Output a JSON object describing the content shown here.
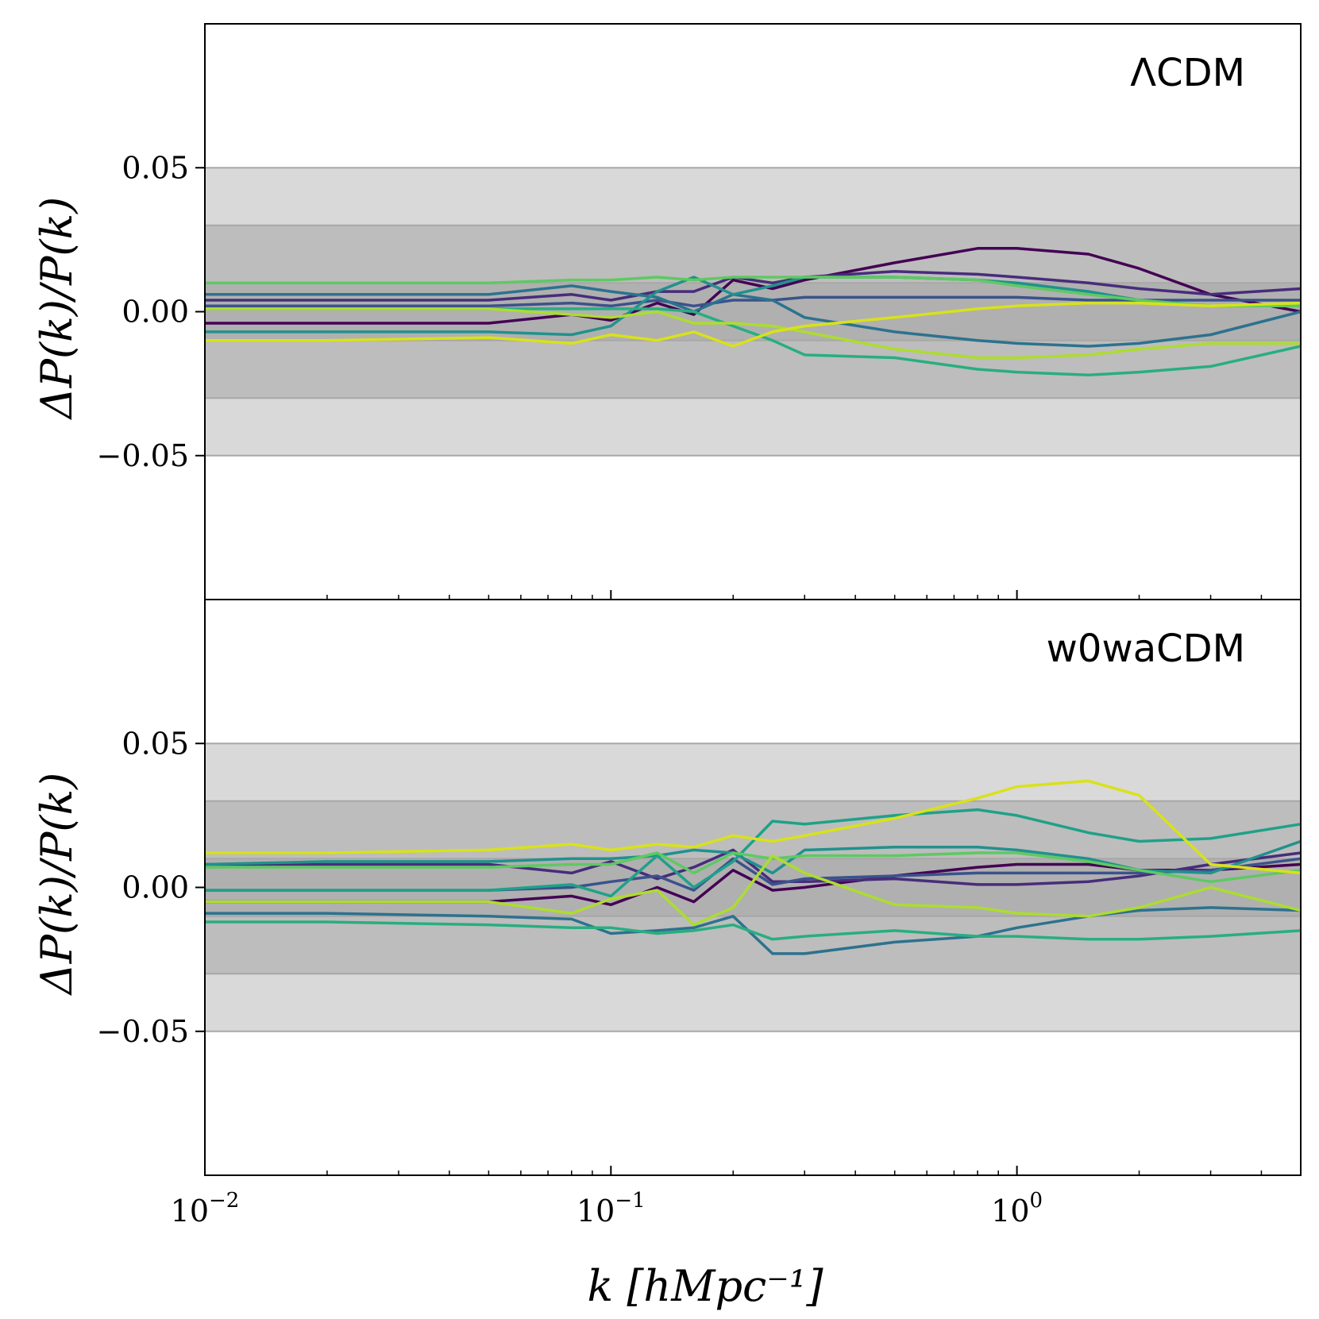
{
  "chart_data": [
    {
      "type": "line",
      "panel": "top",
      "label": "ΛCDM",
      "ylabel": "ΔP(k)/P(k)",
      "xscale": "log",
      "xlim": [
        0.01,
        5.0
      ],
      "ylim": [
        -0.1,
        0.1
      ],
      "yticks": [
        {
          "value": 0.05,
          "label": "0.05"
        },
        {
          "value": 0.0,
          "label": "0.00"
        },
        {
          "value": -0.05,
          "label": "−0.05"
        }
      ],
      "bands": [
        {
          "lower": -0.05,
          "upper": 0.05,
          "color": "#d9d9d9"
        },
        {
          "lower": -0.03,
          "upper": 0.03,
          "color": "#bdbdbd"
        },
        {
          "lower": -0.01,
          "upper": 0.01,
          "color": "#b0b0b0"
        }
      ],
      "series": [
        {
          "color": "#440154",
          "x": [
            0.01,
            0.02,
            0.05,
            0.08,
            0.1,
            0.13,
            0.16,
            0.2,
            0.25,
            0.3,
            0.5,
            0.8,
            1.0,
            1.5,
            2.0,
            3.0,
            5.0
          ],
          "y": [
            -0.004,
            -0.004,
            -0.004,
            -0.001,
            -0.003,
            0.003,
            -0.001,
            0.011,
            0.008,
            0.011,
            0.017,
            0.022,
            0.022,
            0.02,
            0.015,
            0.006,
            0.0
          ]
        },
        {
          "color": "#472d7b",
          "x": [
            0.01,
            0.02,
            0.05,
            0.08,
            0.1,
            0.13,
            0.16,
            0.2,
            0.25,
            0.3,
            0.5,
            0.8,
            1.0,
            1.5,
            2.0,
            3.0,
            5.0
          ],
          "y": [
            0.004,
            0.004,
            0.004,
            0.006,
            0.004,
            0.007,
            0.007,
            0.012,
            0.01,
            0.012,
            0.014,
            0.013,
            0.012,
            0.01,
            0.008,
            0.006,
            0.008
          ]
        },
        {
          "color": "#3b528b",
          "x": [
            0.01,
            0.02,
            0.05,
            0.08,
            0.1,
            0.13,
            0.16,
            0.2,
            0.25,
            0.3,
            0.5,
            0.8,
            1.0,
            1.5,
            2.0,
            3.0,
            5.0
          ],
          "y": [
            0.002,
            0.002,
            0.002,
            0.003,
            0.002,
            0.004,
            0.002,
            0.004,
            0.004,
            0.005,
            0.005,
            0.005,
            0.005,
            0.004,
            0.004,
            0.004,
            0.004
          ]
        },
        {
          "color": "#2c728e",
          "x": [
            0.01,
            0.02,
            0.05,
            0.08,
            0.1,
            0.13,
            0.16,
            0.2,
            0.25,
            0.3,
            0.5,
            0.8,
            1.0,
            1.5,
            2.0,
            3.0,
            5.0
          ],
          "y": [
            0.006,
            0.006,
            0.006,
            0.009,
            0.007,
            0.005,
            0.0,
            0.006,
            0.004,
            -0.002,
            -0.007,
            -0.01,
            -0.011,
            -0.012,
            -0.011,
            -0.008,
            0.0
          ]
        },
        {
          "color": "#21918c",
          "x": [
            0.01,
            0.02,
            0.05,
            0.08,
            0.1,
            0.13,
            0.16,
            0.2,
            0.25,
            0.3,
            0.5,
            0.8,
            1.0,
            1.5,
            2.0,
            3.0,
            5.0
          ],
          "y": [
            -0.007,
            -0.007,
            -0.007,
            -0.008,
            -0.005,
            0.007,
            0.012,
            0.006,
            0.009,
            0.012,
            0.012,
            0.011,
            0.01,
            0.007,
            0.004,
            0.002,
            0.002
          ]
        },
        {
          "color": "#28ae80",
          "x": [
            0.01,
            0.02,
            0.05,
            0.08,
            0.1,
            0.13,
            0.16,
            0.2,
            0.25,
            0.3,
            0.5,
            0.8,
            1.0,
            1.5,
            2.0,
            3.0,
            5.0
          ],
          "y": [
            0.001,
            0.001,
            0.001,
            0.001,
            0.001,
            0.001,
            0.0,
            -0.005,
            -0.01,
            -0.015,
            -0.016,
            -0.02,
            -0.021,
            -0.022,
            -0.021,
            -0.019,
            -0.012
          ]
        },
        {
          "color": "#5ec962",
          "x": [
            0.01,
            0.02,
            0.05,
            0.08,
            0.1,
            0.13,
            0.16,
            0.2,
            0.25,
            0.3,
            0.5,
            0.8,
            1.0,
            1.5,
            2.0,
            3.0,
            5.0
          ],
          "y": [
            0.01,
            0.01,
            0.01,
            0.011,
            0.011,
            0.012,
            0.011,
            0.012,
            0.012,
            0.012,
            0.012,
            0.011,
            0.009,
            0.006,
            0.004,
            0.002,
            0.002
          ]
        },
        {
          "color": "#addc30",
          "x": [
            0.01,
            0.02,
            0.05,
            0.08,
            0.1,
            0.13,
            0.16,
            0.2,
            0.25,
            0.3,
            0.5,
            0.8,
            1.0,
            1.5,
            2.0,
            3.0,
            5.0
          ],
          "y": [
            0.001,
            0.001,
            0.001,
            -0.001,
            -0.002,
            0.0,
            -0.004,
            -0.004,
            -0.005,
            -0.007,
            -0.013,
            -0.016,
            -0.016,
            -0.015,
            -0.013,
            -0.011,
            -0.011
          ]
        },
        {
          "color": "#d8e219",
          "x": [
            0.01,
            0.02,
            0.05,
            0.08,
            0.1,
            0.13,
            0.16,
            0.2,
            0.25,
            0.3,
            0.5,
            0.8,
            1.0,
            1.5,
            2.0,
            3.0,
            5.0
          ],
          "y": [
            -0.01,
            -0.01,
            -0.009,
            -0.011,
            -0.008,
            -0.01,
            -0.007,
            -0.012,
            -0.007,
            -0.005,
            -0.002,
            0.001,
            0.002,
            0.003,
            0.003,
            0.002,
            0.003
          ]
        }
      ]
    },
    {
      "type": "line",
      "panel": "bottom",
      "label": "w0waCDM",
      "ylabel": "ΔP(k)/P(k)",
      "xlabel": "k [hMpc⁻¹]",
      "xscale": "log",
      "xlim": [
        0.01,
        5.0
      ],
      "ylim": [
        -0.1,
        0.1
      ],
      "xticks": [
        {
          "value": 0.01,
          "base": "10",
          "exp": "−2"
        },
        {
          "value": 0.1,
          "base": "10",
          "exp": "−1"
        },
        {
          "value": 1.0,
          "base": "10",
          "exp": "0"
        }
      ],
      "yticks": [
        {
          "value": 0.05,
          "label": "0.05"
        },
        {
          "value": 0.0,
          "label": "0.00"
        },
        {
          "value": -0.05,
          "label": "−0.05"
        }
      ],
      "bands": [
        {
          "lower": -0.05,
          "upper": 0.05,
          "color": "#d9d9d9"
        },
        {
          "lower": -0.03,
          "upper": 0.03,
          "color": "#bdbdbd"
        },
        {
          "lower": -0.01,
          "upper": 0.01,
          "color": "#b0b0b0"
        }
      ],
      "series": [
        {
          "color": "#440154",
          "x": [
            0.01,
            0.02,
            0.05,
            0.08,
            0.1,
            0.13,
            0.16,
            0.2,
            0.25,
            0.3,
            0.5,
            0.8,
            1.0,
            1.5,
            2.0,
            3.0,
            5.0
          ],
          "y": [
            -0.005,
            -0.005,
            -0.005,
            -0.003,
            -0.006,
            0.0,
            -0.005,
            0.006,
            -0.001,
            0.0,
            0.004,
            0.007,
            0.008,
            0.008,
            0.006,
            0.006,
            0.008
          ]
        },
        {
          "color": "#472d7b",
          "x": [
            0.01,
            0.02,
            0.05,
            0.08,
            0.1,
            0.13,
            0.16,
            0.2,
            0.25,
            0.3,
            0.5,
            0.8,
            1.0,
            1.5,
            2.0,
            3.0,
            5.0
          ],
          "y": [
            0.008,
            0.008,
            0.008,
            0.005,
            0.009,
            0.003,
            0.007,
            0.013,
            0.002,
            0.002,
            0.003,
            0.001,
            0.001,
            0.002,
            0.004,
            0.008,
            0.012
          ]
        },
        {
          "color": "#3b528b",
          "x": [
            0.01,
            0.02,
            0.05,
            0.08,
            0.1,
            0.13,
            0.16,
            0.2,
            0.25,
            0.3,
            0.5,
            0.8,
            1.0,
            1.5,
            2.0,
            3.0,
            5.0
          ],
          "y": [
            -0.001,
            -0.001,
            -0.001,
            0.0,
            0.002,
            0.004,
            -0.001,
            0.01,
            0.001,
            0.003,
            0.004,
            0.005,
            0.005,
            0.005,
            0.005,
            0.006,
            0.01
          ]
        },
        {
          "color": "#2c728e",
          "x": [
            0.01,
            0.02,
            0.05,
            0.08,
            0.1,
            0.13,
            0.16,
            0.2,
            0.25,
            0.3,
            0.5,
            0.8,
            1.0,
            1.5,
            2.0,
            3.0,
            5.0
          ],
          "y": [
            -0.009,
            -0.009,
            -0.01,
            -0.011,
            -0.016,
            -0.015,
            -0.014,
            -0.01,
            -0.023,
            -0.023,
            -0.019,
            -0.017,
            -0.014,
            -0.01,
            -0.008,
            -0.007,
            -0.008
          ]
        },
        {
          "color": "#21918c",
          "x": [
            0.01,
            0.02,
            0.05,
            0.08,
            0.1,
            0.13,
            0.16,
            0.2,
            0.25,
            0.3,
            0.5,
            0.8,
            1.0,
            1.5,
            2.0,
            3.0,
            5.0
          ],
          "y": [
            0.008,
            0.009,
            0.009,
            0.01,
            0.01,
            0.011,
            0.013,
            0.012,
            0.005,
            0.013,
            0.014,
            0.014,
            0.013,
            0.01,
            0.006,
            0.005,
            0.016
          ]
        },
        {
          "color": "#28ae80",
          "x": [
            0.01,
            0.02,
            0.05,
            0.08,
            0.1,
            0.13,
            0.16,
            0.2,
            0.25,
            0.3,
            0.5,
            0.8,
            1.0,
            1.5,
            2.0,
            3.0,
            5.0
          ],
          "y": [
            -0.012,
            -0.012,
            -0.013,
            -0.014,
            -0.014,
            -0.016,
            -0.015,
            -0.013,
            -0.018,
            -0.017,
            -0.015,
            -0.017,
            -0.017,
            -0.018,
            -0.018,
            -0.017,
            -0.015
          ]
        },
        {
          "color": "#1fa188",
          "x": [
            0.01,
            0.02,
            0.05,
            0.08,
            0.1,
            0.13,
            0.16,
            0.2,
            0.25,
            0.3,
            0.5,
            0.8,
            1.0,
            1.5,
            2.0,
            3.0,
            5.0
          ],
          "y": [
            -0.001,
            -0.001,
            -0.001,
            0.001,
            -0.003,
            0.011,
            0.0,
            0.009,
            0.023,
            0.022,
            0.025,
            0.027,
            0.025,
            0.019,
            0.016,
            0.017,
            0.022
          ]
        },
        {
          "color": "#5ec962",
          "x": [
            0.01,
            0.02,
            0.05,
            0.08,
            0.1,
            0.13,
            0.16,
            0.2,
            0.25,
            0.3,
            0.5,
            0.8,
            1.0,
            1.5,
            2.0,
            3.0,
            5.0
          ],
          "y": [
            0.007,
            0.007,
            0.007,
            0.008,
            0.008,
            0.012,
            0.005,
            0.012,
            0.01,
            0.011,
            0.011,
            0.012,
            0.012,
            0.009,
            0.006,
            0.002,
            0.006
          ]
        },
        {
          "color": "#addc30",
          "x": [
            0.01,
            0.02,
            0.05,
            0.08,
            0.1,
            0.13,
            0.16,
            0.2,
            0.25,
            0.3,
            0.5,
            0.8,
            1.0,
            1.5,
            2.0,
            3.0,
            5.0
          ],
          "y": [
            -0.005,
            -0.005,
            -0.005,
            -0.009,
            -0.004,
            -0.001,
            -0.013,
            -0.007,
            0.011,
            0.005,
            -0.006,
            -0.007,
            -0.009,
            -0.01,
            -0.007,
            0.0,
            -0.008
          ]
        },
        {
          "color": "#d8e219",
          "x": [
            0.01,
            0.02,
            0.05,
            0.08,
            0.1,
            0.13,
            0.16,
            0.2,
            0.25,
            0.3,
            0.5,
            0.8,
            1.0,
            1.5,
            2.0,
            3.0,
            5.0
          ],
          "y": [
            0.012,
            0.012,
            0.013,
            0.015,
            0.013,
            0.015,
            0.014,
            0.018,
            0.016,
            0.018,
            0.024,
            0.031,
            0.035,
            0.037,
            0.032,
            0.008,
            0.005
          ]
        }
      ]
    }
  ]
}
